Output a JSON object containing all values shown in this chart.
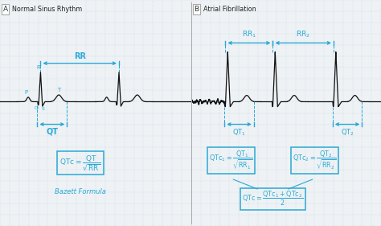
{
  "bg_color": "#eef2f5",
  "grid_color": "#b8cdd8",
  "ecg_color": "#111111",
  "cyan": "#2aa8d5",
  "title_A": "Normal Sinus Rhythm",
  "title_B": "Atrial Fibrillation",
  "bazett": "Bazett Formula"
}
